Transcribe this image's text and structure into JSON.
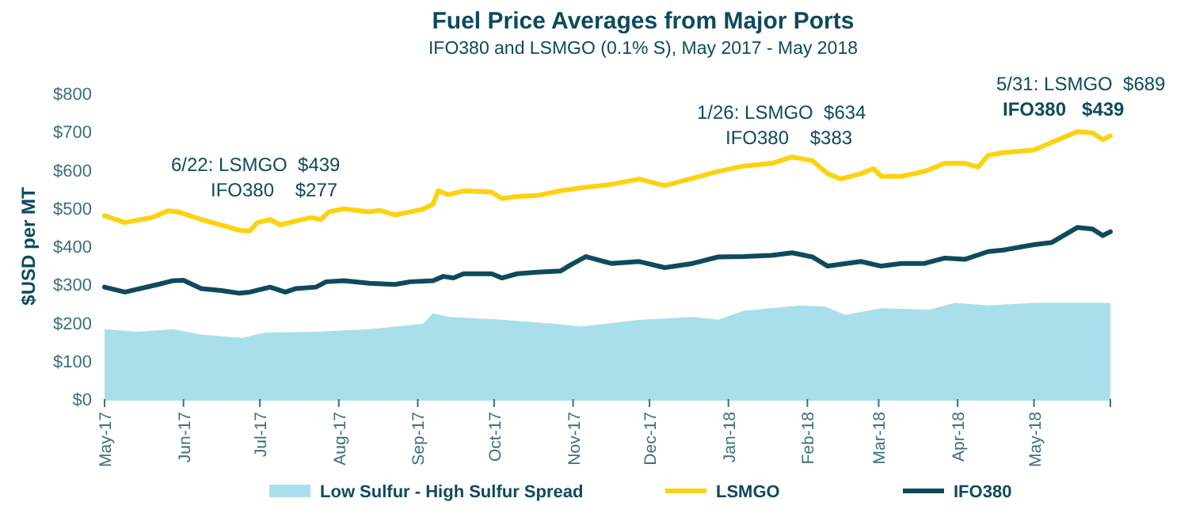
{
  "chart_data": {
    "type": "line",
    "title": "Fuel Price Averages from Major Ports",
    "subtitle": "IFO380 and LSMGO (0.1% S), May 2017 - May 2018",
    "ylabel": "$USD per MT",
    "annotations": [
      "6/22: LSMGO  $439",
      "IFO380    $277",
      "1/26: LSMGO  $634",
      "IFO380    $383",
      "5/31: LSMGO  $689",
      "IFO380   $439"
    ],
    "xlim": [
      "2017-05-01",
      "2018-05-31"
    ],
    "xticks": [
      {
        "value": "2017-05-01",
        "label": "May-17"
      },
      {
        "value": "2017-06-01",
        "label": "Jun-17"
      },
      {
        "value": "2017-07-01",
        "label": "Jul-17"
      },
      {
        "value": "2017-08-01",
        "label": "Aug-17"
      },
      {
        "value": "2017-09-01",
        "label": "Sep-17"
      },
      {
        "value": "2017-10-01",
        "label": "Oct-17"
      },
      {
        "value": "2017-11-01",
        "label": "Nov-17"
      },
      {
        "value": "2017-12-01",
        "label": "Dec-17"
      },
      {
        "value": "2018-01-01",
        "label": "Jan-18"
      },
      {
        "value": "2018-02-01",
        "label": "Feb-18"
      },
      {
        "value": "2018-03-01",
        "label": "Mar-18"
      },
      {
        "value": "2018-04-01",
        "label": "Apr-18"
      },
      {
        "value": "2018-05-01",
        "label": "May-18"
      }
    ],
    "ylim": [
      0,
      800
    ],
    "yticks": [
      {
        "value": 0,
        "label": "$0"
      },
      {
        "value": 100,
        "label": "$100"
      },
      {
        "value": 200,
        "label": "$200"
      },
      {
        "value": 300,
        "label": "$300"
      },
      {
        "value": 400,
        "label": "$400"
      },
      {
        "value": 500,
        "label": "$500"
      },
      {
        "value": 600,
        "label": "$600"
      },
      {
        "value": 700,
        "label": "$700"
      },
      {
        "value": 800,
        "label": "$800"
      }
    ],
    "grid": false,
    "legend": "bottom",
    "line_style": "solid",
    "marker": "none",
    "series": [
      {
        "name": "Low Sulfur - High Sulfur Spread",
        "type": "area",
        "color": "#a9dfeb",
        "x": [
          "2017-05-01",
          "2017-05-14",
          "2017-05-28",
          "2017-06-08",
          "2017-06-24",
          "2017-07-03",
          "2017-07-23",
          "2017-08-13",
          "2017-09-03",
          "2017-09-07",
          "2017-09-13",
          "2017-10-04",
          "2017-10-25",
          "2017-11-04",
          "2017-11-27",
          "2017-12-18",
          "2017-12-28",
          "2018-01-07",
          "2018-01-29",
          "2018-02-08",
          "2018-02-16",
          "2018-03-02",
          "2018-03-21",
          "2018-03-31",
          "2018-04-13",
          "2018-05-01",
          "2018-05-31"
        ],
        "values": [
          183,
          176,
          183,
          169,
          160,
          174,
          176,
          183,
          197,
          225,
          215,
          208,
          197,
          190,
          207,
          215,
          208,
          231,
          245,
          242,
          220,
          238,
          234,
          252,
          245,
          252,
          252
        ]
      },
      {
        "name": "LSMGO",
        "color": "#fdd20e",
        "x": [
          "2017-05-01",
          "2017-05-09",
          "2017-05-20",
          "2017-05-26",
          "2017-05-30",
          "2017-06-08",
          "2017-06-16",
          "2017-06-23",
          "2017-06-27",
          "2017-06-30",
          "2017-07-05",
          "2017-07-09",
          "2017-07-15",
          "2017-07-21",
          "2017-07-25",
          "2017-07-28",
          "2017-08-03",
          "2017-08-13",
          "2017-08-17",
          "2017-08-23",
          "2017-08-29",
          "2017-09-03",
          "2017-09-07",
          "2017-09-09",
          "2017-09-13",
          "2017-09-19",
          "2017-09-30",
          "2017-10-04",
          "2017-10-10",
          "2017-10-18",
          "2017-10-27",
          "2017-11-04",
          "2017-11-16",
          "2017-11-27",
          "2017-12-07",
          "2017-12-18",
          "2017-12-28",
          "2018-01-07",
          "2018-01-18",
          "2018-01-26",
          "2018-02-03",
          "2018-02-09",
          "2018-02-14",
          "2018-02-22",
          "2018-02-27",
          "2018-03-02",
          "2018-03-10",
          "2018-03-19",
          "2018-03-27",
          "2018-04-04",
          "2018-04-09",
          "2018-04-13",
          "2018-04-19",
          "2018-05-01",
          "2018-05-08",
          "2018-05-18",
          "2018-05-24",
          "2018-05-28",
          "2018-05-31"
        ],
        "values": [
          480,
          462,
          476,
          493,
          490,
          470,
          455,
          442,
          440,
          462,
          470,
          456,
          466,
          475,
          470,
          490,
          498,
          490,
          494,
          482,
          490,
          497,
          510,
          545,
          535,
          545,
          542,
          525,
          530,
          533,
          545,
          553,
          562,
          576,
          559,
          578,
          596,
          610,
          617,
          634,
          624,
          590,
          576,
          590,
          603,
          583,
          583,
          596,
          617,
          617,
          607,
          638,
          645,
          652,
          672,
          700,
          697,
          679,
          689
        ]
      },
      {
        "name": "IFO380",
        "color": "#0d4a5e",
        "x": [
          "2017-05-01",
          "2017-05-09",
          "2017-05-22",
          "2017-05-28",
          "2017-06-01",
          "2017-06-08",
          "2017-06-16",
          "2017-06-23",
          "2017-06-27",
          "2017-07-05",
          "2017-07-11",
          "2017-07-15",
          "2017-07-23",
          "2017-07-27",
          "2017-08-03",
          "2017-08-13",
          "2017-08-23",
          "2017-08-29",
          "2017-09-07",
          "2017-09-11",
          "2017-09-15",
          "2017-09-19",
          "2017-09-30",
          "2017-10-04",
          "2017-10-10",
          "2017-10-18",
          "2017-10-27",
          "2017-10-31",
          "2017-11-06",
          "2017-11-16",
          "2017-11-27",
          "2017-12-07",
          "2017-12-18",
          "2017-12-28",
          "2018-01-07",
          "2018-01-18",
          "2018-01-26",
          "2018-02-03",
          "2018-02-09",
          "2018-02-22",
          "2018-03-02",
          "2018-03-10",
          "2018-03-19",
          "2018-03-27",
          "2018-04-04",
          "2018-04-13",
          "2018-04-19",
          "2018-05-01",
          "2018-05-08",
          "2018-05-18",
          "2018-05-24",
          "2018-05-28",
          "2018-05-31"
        ],
        "values": [
          293,
          280,
          300,
          310,
          311,
          289,
          284,
          277,
          280,
          293,
          280,
          289,
          293,
          307,
          310,
          303,
          300,
          307,
          310,
          321,
          317,
          328,
          328,
          317,
          328,
          332,
          335,
          351,
          373,
          355,
          360,
          344,
          355,
          372,
          373,
          376,
          383,
          372,
          348,
          360,
          348,
          355,
          355,
          369,
          366,
          386,
          390,
          404,
          410,
          449,
          445,
          428,
          438
        ]
      }
    ]
  }
}
